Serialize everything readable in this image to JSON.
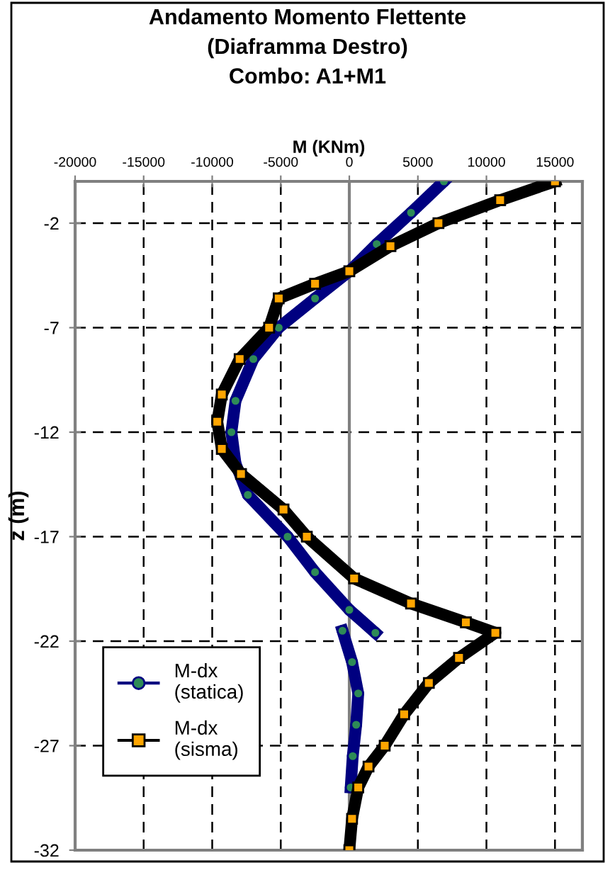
{
  "chart_data": {
    "type": "line",
    "title": "Andamento Momento Flettente\n(Diaframma Destro)\nCombo: A1+M1",
    "xlabel": "M (KNm)",
    "ylabel": "z (m)",
    "xlim": [
      -20000,
      17000
    ],
    "xticks": [
      -20000,
      -15000,
      -10000,
      -5000,
      0,
      5000,
      10000,
      15000
    ],
    "ylim": [
      -32,
      0
    ],
    "yticks": [
      -2,
      -7,
      -12,
      -17,
      -22,
      -27,
      -32
    ],
    "grid": true,
    "ref_lines": [
      {
        "axis": "x",
        "value": 0,
        "color": "#808080"
      }
    ],
    "legend": "bottom left",
    "line_style": "solid",
    "series": [
      {
        "name": "M-dx\n(statica)",
        "color": "#000080",
        "marker": "circle",
        "x": [
          6900,
          4500,
          2000,
          0,
          -2500,
          -5150,
          -7000,
          -8300,
          -8600,
          -8300,
          -7400,
          -4500,
          -2500,
          0,
          1900,
          null,
          -500,
          200,
          650,
          500,
          250,
          100
        ],
        "values": [
          0,
          -1.5,
          -3,
          -4.3,
          -5.6,
          -7,
          -8.5,
          -10.5,
          -12,
          -13.5,
          -15,
          -17,
          -18.7,
          -20.5,
          -21.6,
          null,
          -21.5,
          -23,
          -24.5,
          -26,
          -27.5,
          -29
        ]
      },
      {
        "name": "M-dx\n(sisma)",
        "color": "#000000",
        "marker": "square",
        "x": [
          15000,
          11000,
          6500,
          3000,
          0,
          -2500,
          -5150,
          -5850,
          -8000,
          -9300,
          -9630,
          -9300,
          -7900,
          -4800,
          -3100,
          350,
          4500,
          8500,
          10650,
          8000,
          5800,
          4000,
          2580,
          1400,
          650,
          200,
          0
        ],
        "values": [
          0,
          -0.9,
          -2,
          -3.1,
          -4.3,
          -4.9,
          -5.6,
          -7,
          -8.5,
          -10.2,
          -11.5,
          -12.8,
          -14,
          -15.7,
          -17,
          -19,
          -20.2,
          -21.1,
          -21.6,
          -22.8,
          -24,
          -25.5,
          -27,
          -28,
          -29,
          -30.5,
          -32
        ]
      }
    ]
  }
}
